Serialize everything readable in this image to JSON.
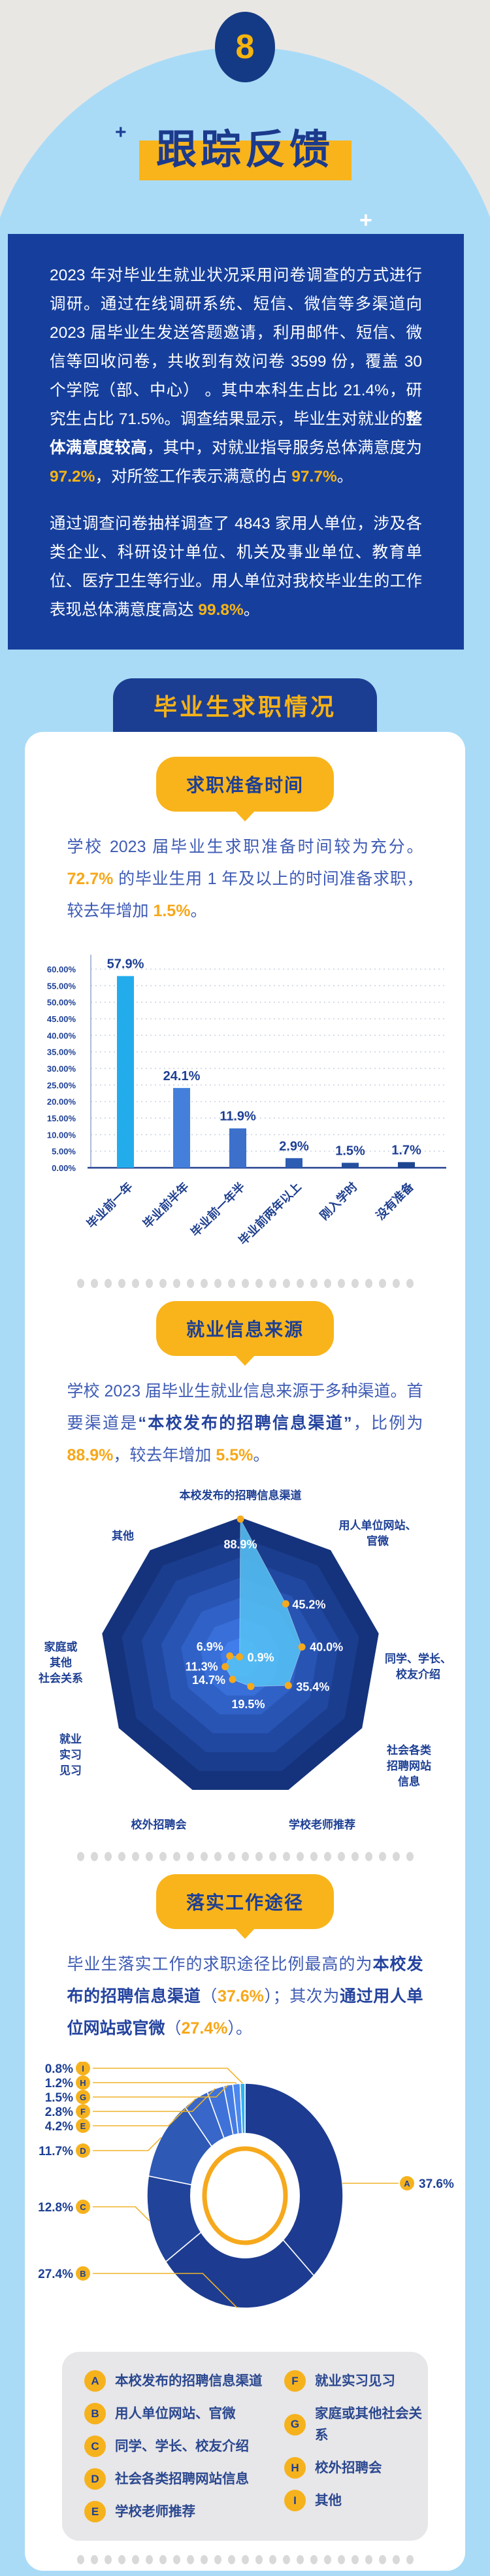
{
  "hero": {
    "badge": "8",
    "title": "跟踪反馈"
  },
  "band": {
    "paragraphs": [
      [
        {
          "t": "2023 年对毕业生就业状况采用问卷调查的方式进行调研。通过在线调研系统、短信、微信等多渠道向 2023 届毕业生发送答题邀请，利用邮件、短信、微信等回收问卷，共收到有效问卷 3599 份，覆盖 30 个学院（部、中心） 。其中本科生占比 21.4%，研究生占比 71.5%。调查结果显示，毕业生对就业的"
        },
        {
          "t": "整体满意度较高",
          "style": "strong"
        },
        {
          "t": "，其中，对就业指导服务总体满意度为 "
        },
        {
          "t": "97.2%",
          "style": "accent"
        },
        {
          "t": "，对所签工作表示满意的占 "
        },
        {
          "t": "97.7%",
          "style": "accent"
        },
        {
          "t": "。"
        }
      ],
      [
        {
          "t": "通过调查问卷抽样调查了 4843 家用人单位，涉及各类企业、科研设计单位、机关及事业单位、教育单位、医疗卫生等行业。用人单位对我校毕业生的工作表现总体满意度高达 "
        },
        {
          "t": "99.8%",
          "style": "accent"
        },
        {
          "t": "。"
        }
      ]
    ]
  },
  "tab": "毕业生求职情况",
  "sections": [
    {
      "pill": "求职准备时间",
      "intro": [
        {
          "t": "学校 2023 届毕业生求职准备时间较为充分。"
        },
        {
          "t": "72.7%",
          "style": "accent"
        },
        {
          "t": " 的毕业生用 1 年及以上的时间准备求职，较去年增加 "
        },
        {
          "t": "1.5%",
          "style": "accent"
        },
        {
          "t": "。"
        }
      ]
    },
    {
      "pill": "就业信息来源",
      "intro": [
        {
          "t": "学校 2023 届毕业生就业信息来源于多种渠道。首要渠道是"
        },
        {
          "t": "“本校发布的招聘信息渠道”",
          "style": "strong"
        },
        {
          "t": "，比例为 "
        },
        {
          "t": "88.9%",
          "style": "accent"
        },
        {
          "t": "，较去年增加 "
        },
        {
          "t": "5.5%",
          "style": "accent"
        },
        {
          "t": "。"
        }
      ]
    },
    {
      "pill": "落实工作途径",
      "intro": [
        {
          "t": "毕业生落实工作的求职途径比例最高的为"
        },
        {
          "t": "本校发布的招聘信息渠道",
          "style": "strong"
        },
        {
          "t": "（"
        },
        {
          "t": "37.6%",
          "style": "accent"
        },
        {
          "t": "）；其次为"
        },
        {
          "t": "通过用人单位网站或官微",
          "style": "strong"
        },
        {
          "t": "（"
        },
        {
          "t": "27.4%",
          "style": "accent"
        },
        {
          "t": "）。"
        }
      ]
    }
  ],
  "chart_data": [
    {
      "type": "bar",
      "title": "求职准备时间",
      "categories": [
        "毕业前一年",
        "毕业前半年",
        "毕业前一年半",
        "毕业前两年以上",
        "刚入学时",
        "没有准备"
      ],
      "values": [
        57.9,
        24.1,
        11.9,
        2.9,
        1.5,
        1.7
      ],
      "unit": "%",
      "ylim": [
        0,
        60
      ],
      "ytick_step": 5,
      "ytick_format_decimals": 2,
      "grid": true,
      "bar_colors": [
        "#22ACEC",
        "#4480DB",
        "#3C70CB",
        "#2D5CB3",
        "#25509E",
        "#1D4590"
      ]
    },
    {
      "type": "radar",
      "title": "就业信息来源",
      "axes": [
        [
          "本校发布的招聘信息渠道"
        ],
        [
          "用人单位网站、",
          "官微"
        ],
        [
          "同学、学长、",
          "校友介绍"
        ],
        [
          "社会各类",
          "招聘网站",
          "信息"
        ],
        [
          "学校老师推荐"
        ],
        [
          "校外招聘会"
        ],
        [
          "就业",
          "实习",
          "见习"
        ],
        [
          "家庭或",
          "其他",
          "社会关系"
        ],
        [
          "其他"
        ]
      ],
      "values": [
        88.9,
        45.2,
        40.0,
        35.4,
        19.5,
        14.7,
        11.3,
        6.9,
        0.9
      ],
      "max": 90,
      "rings": 7,
      "ring_colors": [
        "#15337C",
        "#1B3D8E",
        "#2148A0",
        "#2854B3",
        "#3061C6",
        "#386FD9",
        "#417EEC"
      ],
      "fill_color": "rgba(86,195,245,0.85)",
      "dot_color": "#F6A91C"
    },
    {
      "type": "donut",
      "title": "落实工作途径",
      "slices": [
        {
          "key": "A",
          "value": 37.6
        },
        {
          "key": "B",
          "value": 27.4
        },
        {
          "key": "C",
          "value": 12.8
        },
        {
          "key": "D",
          "value": 11.7
        },
        {
          "key": "E",
          "value": 4.2
        },
        {
          "key": "F",
          "value": 2.8
        },
        {
          "key": "G",
          "value": 1.5
        },
        {
          "key": "H",
          "value": 1.2
        },
        {
          "key": "I",
          "value": 0.8
        }
      ],
      "slice_colors": [
        "#1D3C91",
        "#1D3C91",
        "#21439A",
        "#2E59B5",
        "#3866C9",
        "#3F72D8",
        "#457DE4",
        "#4B88EF",
        "#2FB3F3"
      ],
      "inner_ring_color": "#F6A91C"
    }
  ],
  "legend": {
    "items": [
      {
        "key": "A",
        "label": "本校发布的招聘信息渠道"
      },
      {
        "key": "B",
        "label": "用人单位网站、官微"
      },
      {
        "key": "C",
        "label": "同学、学长、校友介绍"
      },
      {
        "key": "D",
        "label": "社会各类招聘网站信息"
      },
      {
        "key": "E",
        "label": "学校老师推荐"
      },
      {
        "key": "F",
        "label": "就业实习见习"
      },
      {
        "key": "G",
        "label": "家庭或其他社会关系"
      },
      {
        "key": "H",
        "label": "校外招聘会"
      },
      {
        "key": "I",
        "label": "其他"
      }
    ]
  },
  "colors": {
    "accent_yellow": "#F8B217",
    "navy": "#1D3F94",
    "band_blue": "#163F9D",
    "page_blue": "#A9DBF7",
    "hero_gray": "#E9E7E4",
    "legend_gray": "#E7E6E8"
  }
}
